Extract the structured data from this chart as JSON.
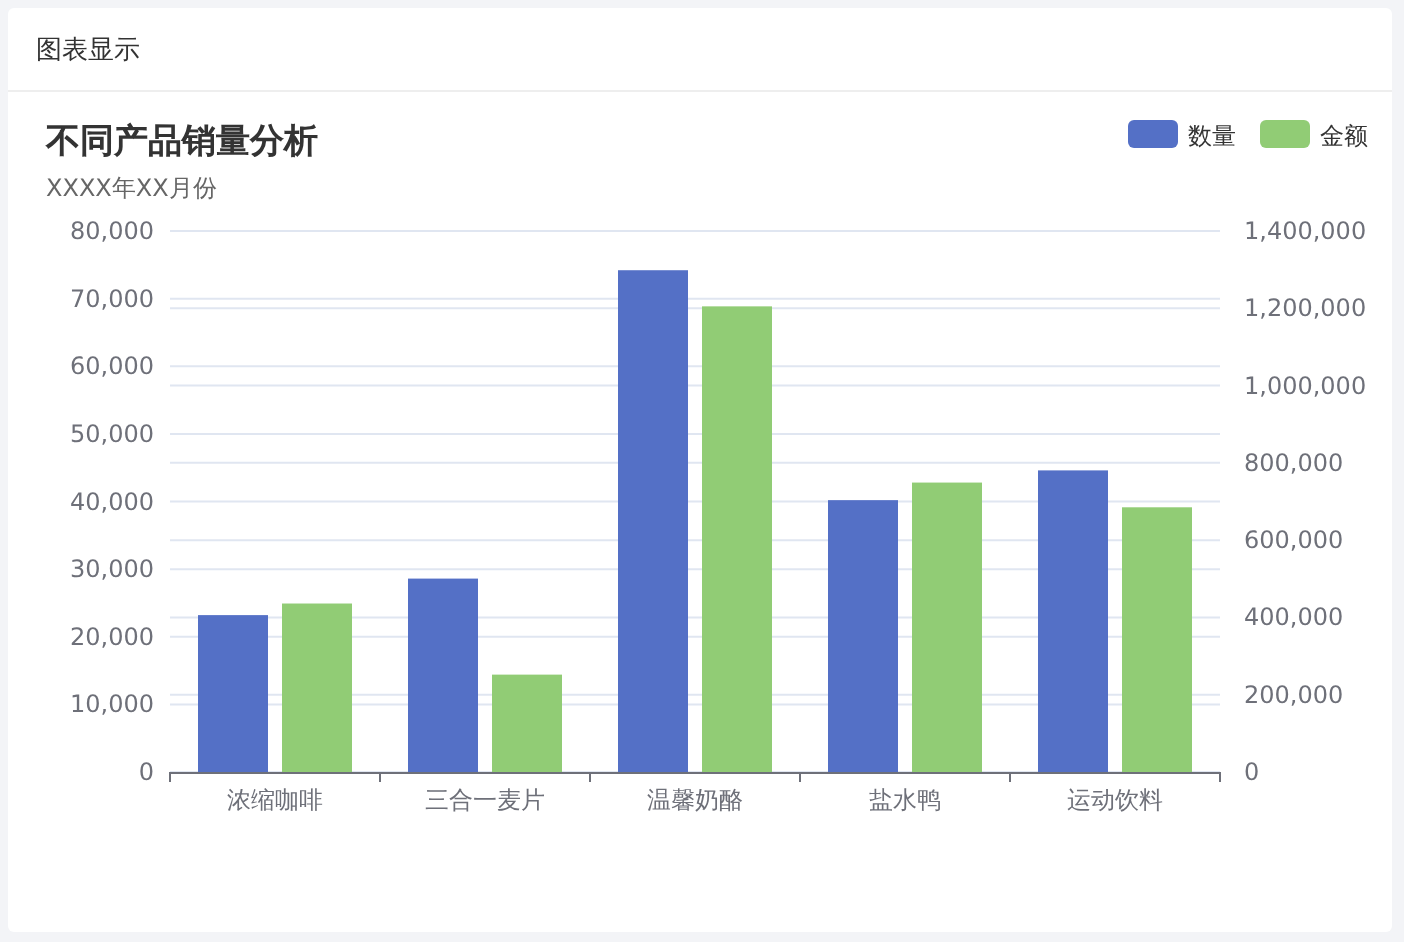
{
  "chart_data": {
    "type": "bar",
    "title": "不同产品销量分析",
    "subtitle": "XXXX年XX月份",
    "annotations": [
      "图表显示"
    ],
    "categories": [
      "浓缩咖啡",
      "三合一麦片",
      "温馨奶酪",
      "盐水鸭",
      "运动饮料"
    ],
    "series": [
      {
        "name": "数量",
        "color": "#5470c6",
        "values": [
          23200,
          28600,
          74200,
          40200,
          44600
        ]
      },
      {
        "name": "金额",
        "color": "#91cc75",
        "axis": "y2",
        "values": [
          436000,
          252000,
          1205000,
          749000,
          685000
        ]
      }
    ],
    "ylim": [
      0,
      80000
    ],
    "yticks": [
      {
        "value": 0,
        "label": "0"
      },
      {
        "value": 10000,
        "label": "10,000"
      },
      {
        "value": 20000,
        "label": "20,000"
      },
      {
        "value": 30000,
        "label": "30,000"
      },
      {
        "value": 40000,
        "label": "40,000"
      },
      {
        "value": 50000,
        "label": "50,000"
      },
      {
        "value": 60000,
        "label": "60,000"
      },
      {
        "value": 70000,
        "label": "70,000"
      },
      {
        "value": 80000,
        "label": "80,000"
      }
    ],
    "y2lim": [
      0,
      1400000
    ],
    "y2ticks": [
      {
        "value": 0,
        "label": "0"
      },
      {
        "value": 200000,
        "label": "200,000"
      },
      {
        "value": 400000,
        "label": "400,000"
      },
      {
        "value": 600000,
        "label": "600,000"
      },
      {
        "value": 800000,
        "label": "800,000"
      },
      {
        "value": 1000000,
        "label": "1,000,000"
      },
      {
        "value": 1200000,
        "label": "1,200,000"
      },
      {
        "value": 1400000,
        "label": "1,400,000"
      }
    ],
    "grid": true,
    "legend": "top right"
  }
}
